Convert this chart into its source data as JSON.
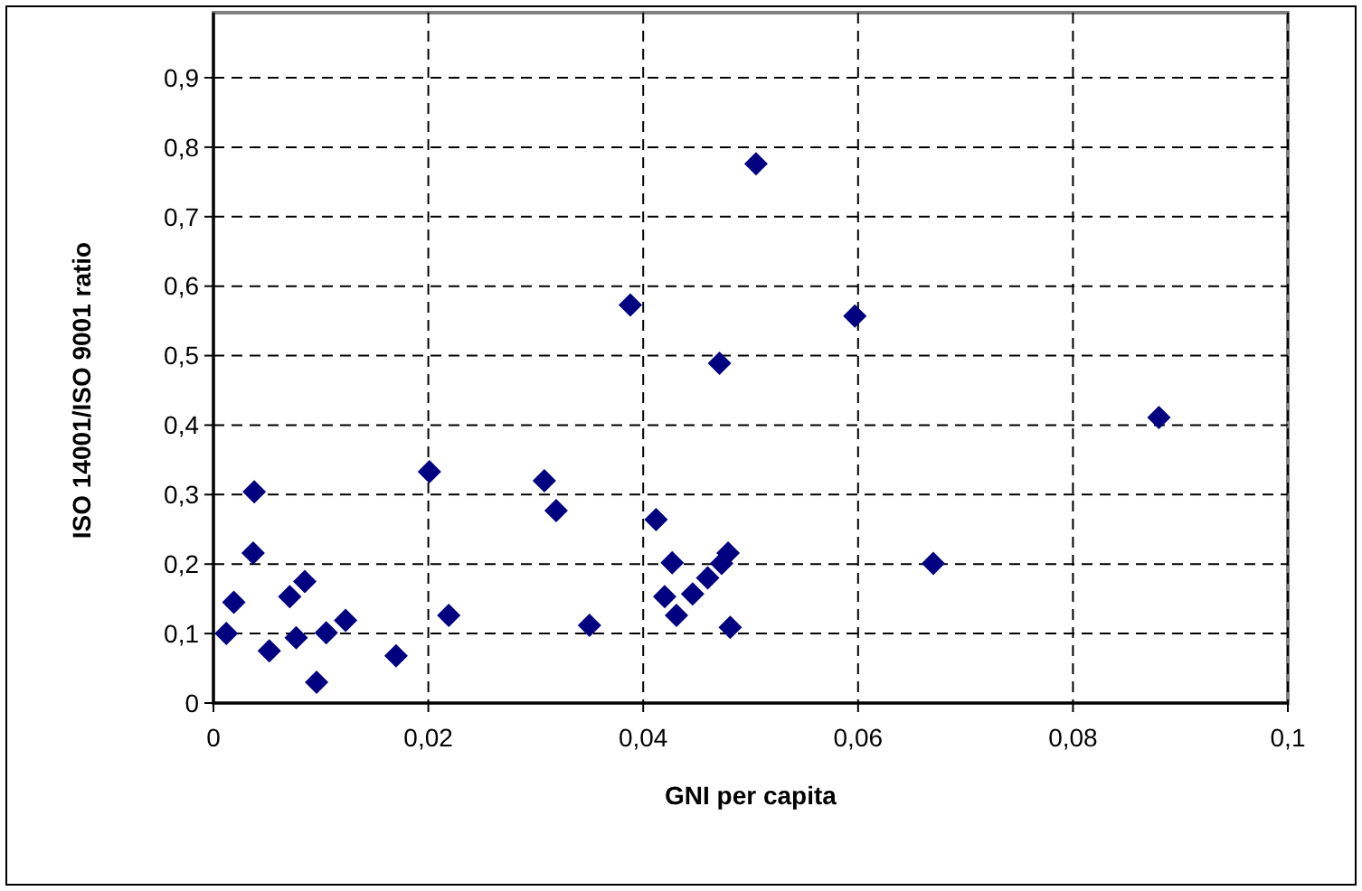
{
  "chart_data": {
    "type": "scatter",
    "xlabel": "GNI per capita",
    "ylabel": "ISO 14001/ISO 9001 ratio",
    "xlim": [
      0,
      0.1
    ],
    "ylim": [
      0,
      0.9
    ],
    "xticks": [
      0,
      {
        "value": 0.02,
        "label": "0,02"
      },
      {
        "value": 0.04,
        "label": "0,04"
      },
      {
        "value": 0.06,
        "label": "0,06"
      },
      {
        "value": 0.08,
        "label": "0,08"
      },
      {
        "value": 0.1,
        "label": "0,1"
      }
    ],
    "yticks": [
      0,
      {
        "value": 0.1,
        "label": "0,1"
      },
      {
        "value": 0.2,
        "label": "0,2"
      },
      {
        "value": 0.3,
        "label": "0,3"
      },
      {
        "value": 0.4,
        "label": "0,4"
      },
      {
        "value": 0.5,
        "label": "0,5"
      },
      {
        "value": 0.6,
        "label": "0,6"
      },
      {
        "value": 0.7,
        "label": "0,7"
      },
      {
        "value": 0.8,
        "label": "0,8"
      },
      {
        "value": 0.9,
        "label": "0,9"
      }
    ],
    "grid": true,
    "marker": "diamond",
    "series": [
      {
        "color": "#000080",
        "x": [
          0.0012,
          0.0019,
          0.0038,
          0.0037,
          0.0052,
          0.0077,
          0.0071,
          0.0085,
          0.0096,
          0.0105,
          0.0123,
          0.017,
          0.0201,
          0.0219,
          0.0308,
          0.0319,
          0.035,
          0.0412,
          0.0427,
          0.042,
          0.0431,
          0.0446,
          0.046,
          0.0473,
          0.0479,
          0.0481,
          0.067,
          0.0388,
          0.0505,
          0.0471,
          0.0597,
          0.088
        ],
        "values": [
          0.1,
          0.145,
          0.304,
          0.216,
          0.075,
          0.094,
          0.153,
          0.175,
          0.03,
          0.101,
          0.119,
          0.068,
          0.333,
          0.126,
          0.32,
          0.277,
          0.112,
          0.264,
          0.202,
          0.153,
          0.126,
          0.157,
          0.18,
          0.201,
          0.216,
          0.109,
          0.201,
          0.573,
          0.776,
          0.489,
          0.557,
          0.411
        ]
      }
    ]
  }
}
